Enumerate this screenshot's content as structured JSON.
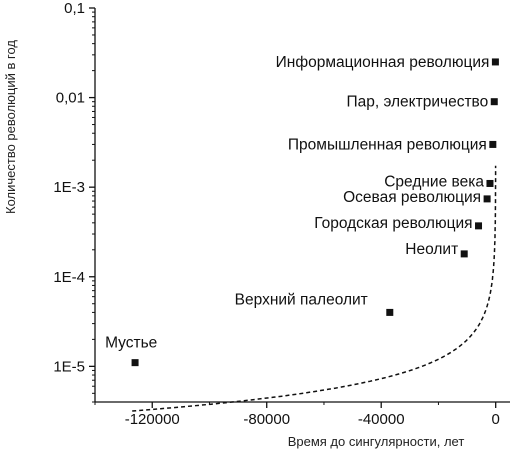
{
  "chart_data": {
    "type": "scatter",
    "xlabel": "Время до сингулярности, лет",
    "ylabel": "Количество революций в год",
    "xlim": [
      -140000,
      5000
    ],
    "ylim": [
      4e-06,
      0.1
    ],
    "yscale": "log",
    "grid": false,
    "x_ticks": [
      {
        "value": -120000,
        "label": "-120000"
      },
      {
        "value": -80000,
        "label": "-80000"
      },
      {
        "value": -40000,
        "label": "-40000"
      },
      {
        "value": 0,
        "label": "0"
      }
    ],
    "y_ticks": [
      {
        "value": 0.1,
        "label": "0,1"
      },
      {
        "value": 0.01,
        "label": "0,01"
      },
      {
        "value": 0.001,
        "label": "1E-3"
      },
      {
        "value": 0.0001,
        "label": "1E-4"
      },
      {
        "value": 1e-05,
        "label": "1E-5"
      }
    ],
    "points": [
      {
        "label": "Мустье",
        "x": -126000,
        "y": 1.1e-05
      },
      {
        "label": "Верхний палеолит",
        "x": -37000,
        "y": 4e-05
      },
      {
        "label": "Неолит",
        "x": -11000,
        "y": 0.00018
      },
      {
        "label": "Городская революция",
        "x": -6000,
        "y": 0.00037
      },
      {
        "label": "Осевая революция",
        "x": -3000,
        "y": 0.00074
      },
      {
        "label": "Средние века",
        "x": -2000,
        "y": 0.0011
      },
      {
        "label": "Промышленная революция",
        "x": -1000,
        "y": 0.003
      },
      {
        "label": "Пар, электричество",
        "x": -500,
        "y": 0.009
      },
      {
        "label": "Информационная революция",
        "x": -100,
        "y": 0.025
      }
    ],
    "trend_line": {
      "style": "dashed",
      "formula": "y = 0.015 * (-x)^(-0.72)"
    }
  }
}
